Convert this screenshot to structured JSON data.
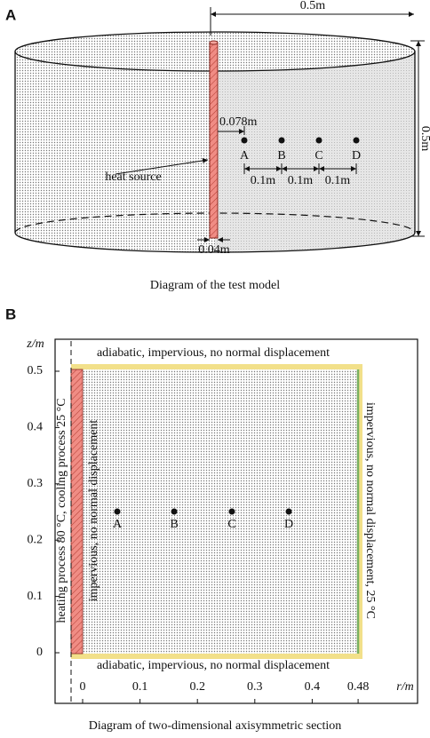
{
  "panel_a": {
    "label": "A",
    "dimensions": {
      "diameter": "0.5m",
      "height": "0.5m",
      "offset": "0.078m",
      "spacings": [
        "0.1m",
        "0.1m",
        "0.1m"
      ],
      "rod": "0.04m"
    },
    "points": [
      "A",
      "B",
      "C",
      "D"
    ],
    "heat_source": "heat source",
    "caption": "Diagram of the test model"
  },
  "panel_b": {
    "label": "B",
    "y_axis_label": "z/m",
    "x_axis_label": "r/m",
    "yticks": [
      0,
      0.1,
      0.2,
      0.3,
      0.4,
      0.5
    ],
    "xticks": [
      0,
      0.1,
      0.2,
      0.3,
      0.4,
      0.48
    ],
    "top_boundary": "adiabatic, impervious, no normal displacement",
    "bottom_boundary": "adiabatic, impervious, no normal displacement",
    "left_boundary": "heating process 80 °C, cooling process 25 °C",
    "axis_boundary": "impervious, no normal displacement",
    "right_boundary": "impervious, no normal displacement, 25 °C",
    "points": [
      "A",
      "B",
      "C",
      "D"
    ],
    "caption": "Diagram of two-dimensional axisymmetric section"
  }
}
